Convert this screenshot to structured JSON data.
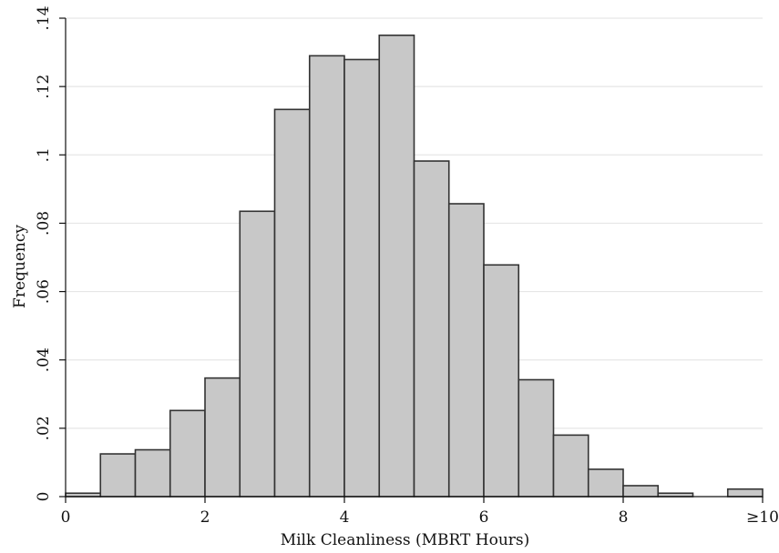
{
  "chart_data": {
    "type": "bar",
    "title": "",
    "xlabel": "Milk Cleanliness (MBRT Hours)",
    "ylabel": "Frequency",
    "xlim": [
      0,
      10
    ],
    "ylim": [
      0,
      0.14
    ],
    "grid": true,
    "bin_width": 0.5,
    "x_ticks": [
      {
        "value": 0,
        "label": "0"
      },
      {
        "value": 2,
        "label": "2"
      },
      {
        "value": 4,
        "label": "4"
      },
      {
        "value": 6,
        "label": "6"
      },
      {
        "value": 8,
        "label": "8"
      },
      {
        "value": 10,
        "label": "≥10"
      }
    ],
    "y_ticks": [
      {
        "value": 0,
        "label": "0"
      },
      {
        "value": 0.02,
        "label": ".02"
      },
      {
        "value": 0.04,
        "label": ".04"
      },
      {
        "value": 0.06,
        "label": ".06"
      },
      {
        "value": 0.08,
        "label": ".08"
      },
      {
        "value": 0.1,
        "label": ".1"
      },
      {
        "value": 0.12,
        "label": ".12"
      },
      {
        "value": 0.14,
        "label": ".14"
      }
    ],
    "bins": [
      {
        "x0": 0.0,
        "x1": 0.5,
        "value": 0.001
      },
      {
        "x0": 0.5,
        "x1": 1.0,
        "value": 0.0125
      },
      {
        "x0": 1.0,
        "x1": 1.5,
        "value": 0.0137
      },
      {
        "x0": 1.5,
        "x1": 2.0,
        "value": 0.0252
      },
      {
        "x0": 2.0,
        "x1": 2.5,
        "value": 0.0347
      },
      {
        "x0": 2.5,
        "x1": 3.0,
        "value": 0.0835
      },
      {
        "x0": 3.0,
        "x1": 3.5,
        "value": 0.1133
      },
      {
        "x0": 3.5,
        "x1": 4.0,
        "value": 0.129
      },
      {
        "x0": 4.0,
        "x1": 4.5,
        "value": 0.1279
      },
      {
        "x0": 4.5,
        "x1": 5.0,
        "value": 0.135
      },
      {
        "x0": 5.0,
        "x1": 5.5,
        "value": 0.0982
      },
      {
        "x0": 5.5,
        "x1": 6.0,
        "value": 0.0857
      },
      {
        "x0": 6.0,
        "x1": 6.5,
        "value": 0.0678
      },
      {
        "x0": 6.5,
        "x1": 7.0,
        "value": 0.0342
      },
      {
        "x0": 7.0,
        "x1": 7.5,
        "value": 0.018
      },
      {
        "x0": 7.5,
        "x1": 8.0,
        "value": 0.008
      },
      {
        "x0": 8.0,
        "x1": 8.5,
        "value": 0.0032
      },
      {
        "x0": 8.5,
        "x1": 9.0,
        "value": 0.001
      },
      {
        "x0": 9.5,
        "x1": 10.0,
        "value": 0.0022
      }
    ],
    "colors": {
      "bar_fill": "#c8c8c8",
      "bar_stroke": "#333333",
      "grid": "#e6e6e6",
      "axis": "#111111"
    }
  }
}
